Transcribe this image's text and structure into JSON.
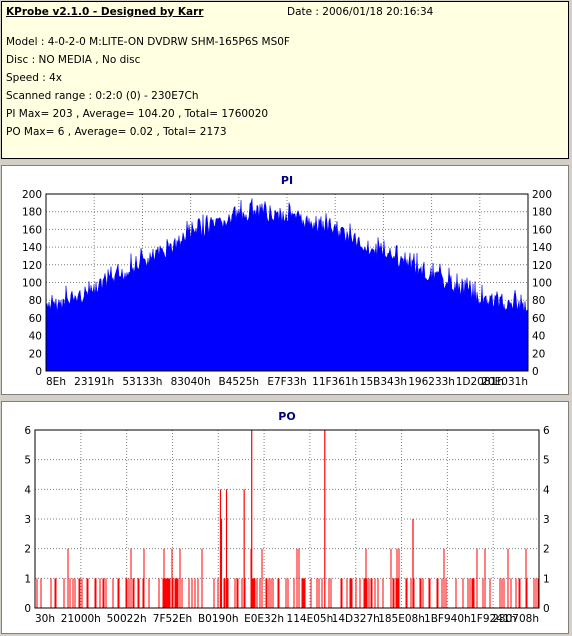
{
  "header": {
    "title": "KProbe v2.1.0 - Designed by Karr",
    "date": "Date : 2006/01/18 20:16:34",
    "lines": [
      "Model : 4-0-2-0 M:LITE-ON DVDRW SHM-165P6S MS0F",
      "Disc : NO MEDIA , No disc",
      "Speed : 4x",
      "Scanned range : 0:2:0 (0) - 230E7Ch",
      "PI Max= 203 , Average= 104.20 , Total= 1760020",
      "PO Max= 6 , Average= 0.02 , Total= 2173"
    ]
  },
  "chart_data": [
    {
      "type": "area",
      "title": "PI",
      "ylim": [
        0,
        200
      ],
      "yticks": [
        0,
        20,
        40,
        60,
        80,
        100,
        120,
        140,
        160,
        180,
        200
      ],
      "xticks": [
        "8Eh",
        "23191h",
        "53133h",
        "83040h",
        "B4525h",
        "E7F33h",
        "11F361h",
        "15B343h",
        "196233h",
        "1D2081h",
        "20E031h"
      ],
      "color": "#0000ff",
      "envelope": [
        {
          "x": 0.0,
          "y": 78
        },
        {
          "x": 0.1,
          "y": 100
        },
        {
          "x": 0.2,
          "y": 130
        },
        {
          "x": 0.3,
          "y": 163
        },
        {
          "x": 0.4,
          "y": 183
        },
        {
          "x": 0.45,
          "y": 187
        },
        {
          "x": 0.5,
          "y": 183
        },
        {
          "x": 0.6,
          "y": 168
        },
        {
          "x": 0.7,
          "y": 140
        },
        {
          "x": 0.8,
          "y": 117
        },
        {
          "x": 0.9,
          "y": 90
        },
        {
          "x": 1.0,
          "y": 80
        }
      ],
      "grid": true
    },
    {
      "type": "bar",
      "title": "PO",
      "ylim": [
        0,
        6
      ],
      "yticks": [
        0,
        1,
        2,
        3,
        4,
        5,
        6
      ],
      "xticks": [
        "30h",
        "21000h",
        "50022h",
        "7F52Eh",
        "B0190h",
        "E0E32h",
        "114E05h",
        "14D327h",
        "185E08h",
        "1BF940h",
        "1F9241h",
        "230708h"
      ],
      "color": "#ff0000",
      "spikes": [
        {
          "x": 0.43,
          "y": 6
        },
        {
          "x": 0.575,
          "y": 6
        },
        {
          "x": 0.38,
          "y": 4
        },
        {
          "x": 0.368,
          "y": 4
        },
        {
          "x": 0.415,
          "y": 4
        },
        {
          "x": 0.37,
          "y": 3
        },
        {
          "x": 0.75,
          "y": 3
        }
      ],
      "grid": true
    }
  ]
}
